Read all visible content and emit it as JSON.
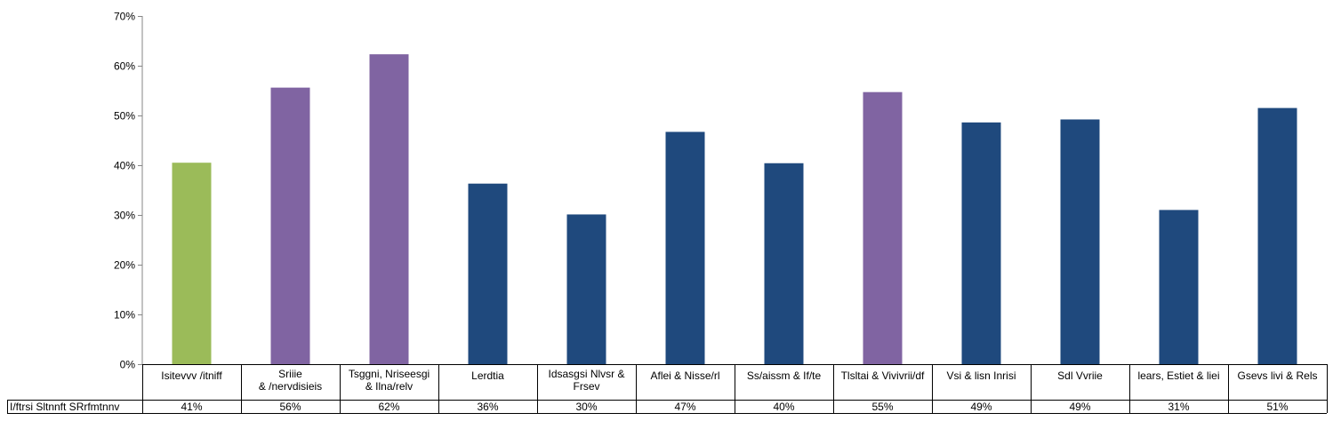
{
  "chart_data": {
    "type": "bar",
    "categories": [
      [
        "Isitevvv /itniff"
      ],
      [
        "Sriiie",
        "& /nervdisieis"
      ],
      [
        "Tsggni, Nriseesgi",
        "& Ilna/relv"
      ],
      [
        "Lerdtia"
      ],
      [
        "Idsasgsi Nlvsr &",
        "Frsev"
      ],
      [
        "Aflei & Nisse/rl"
      ],
      [
        "Ss/aissm & If/te"
      ],
      [
        "Tlsltai & Vivivrii/df"
      ],
      [
        "Vsi & lisn Inrisi"
      ],
      [
        "Sdl Vvriie"
      ],
      [
        "lears, Estiet & liei"
      ],
      [
        "Gsevs livi & Rels"
      ]
    ],
    "series": [
      {
        "name": "I/ftrsi Sltnnft SRrfmtnnv",
        "values": [
          40.5,
          55.6,
          62.3,
          36.3,
          30.1,
          46.7,
          40.4,
          54.7,
          48.6,
          49.2,
          31.0,
          51.5
        ]
      }
    ],
    "table_row": {
      "label": "I/ftrsi Sltnnft SRrfmtnnv",
      "values": [
        "41%",
        "56%",
        "62%",
        "36%",
        "30%",
        "47%",
        "40%",
        "55%",
        "49%",
        "49%",
        "31%",
        "51%"
      ]
    },
    "bar_colors": [
      "#9BBB59",
      "#8064A2",
      "#8064A2",
      "#1F497D",
      "#1F497D",
      "#1F497D",
      "#1F497D",
      "#8064A2",
      "#1F497D",
      "#1F497D",
      "#1F497D",
      "#1F497D"
    ],
    "y_ticks": [
      "0%",
      "10%",
      "20%",
      "30%",
      "40%",
      "50%",
      "60%",
      "70%"
    ],
    "ylim": [
      0,
      70
    ],
    "title": "",
    "xlabel": "",
    "ylabel": "",
    "grid": false,
    "legend": "none"
  }
}
